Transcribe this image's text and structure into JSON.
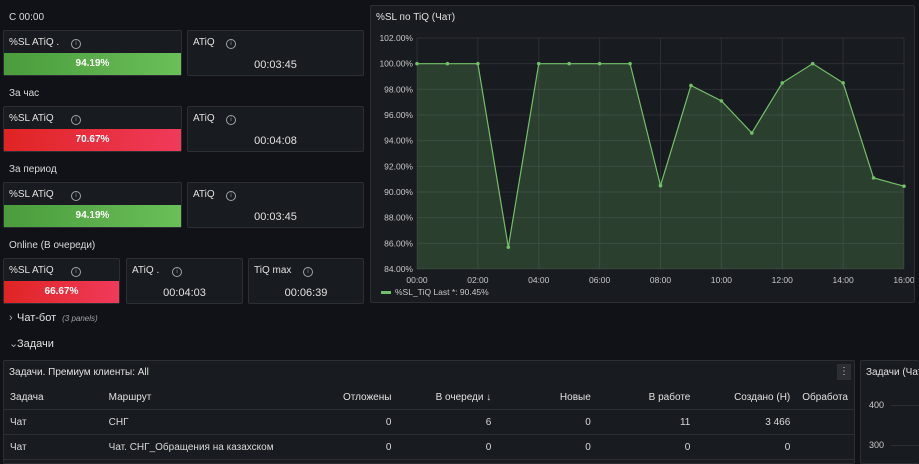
{
  "sections": {
    "s1": "С 00:00",
    "s2": "За час",
    "s3": "За период",
    "s4": "Online (В очереди)"
  },
  "stats": {
    "p1": {
      "title": "%SL ATiQ .",
      "value": "94.19%",
      "level": 0.9419,
      "color": "#6bbf59"
    },
    "p2": {
      "title": "ATiQ",
      "value": "00:03:45"
    },
    "p3": {
      "title": "%SL ATiQ",
      "value": "70.67%",
      "level": 0.7067,
      "color": "#f03a5a"
    },
    "p4": {
      "title": "ATiQ",
      "value": "00:04:08"
    },
    "p5": {
      "title": "%SL ATiQ",
      "value": "94.19%",
      "level": 0.9419,
      "color": "#6bbf59"
    },
    "p6": {
      "title": "ATiQ",
      "value": "00:03:45"
    },
    "p7": {
      "title": "%SL ATiQ",
      "value": "66.67%",
      "level": 0.6667,
      "color": "#f03a5a"
    },
    "p8": {
      "title": "ATiQ .",
      "value": "00:04:03"
    },
    "p9": {
      "title": "TiQ max",
      "value": "00:06:39"
    }
  },
  "info_glyph": "i",
  "chart_panel": {
    "title": "%SL по TiQ (Чат)"
  },
  "chart_data": {
    "type": "area",
    "x": [
      "00:00",
      "01:00",
      "02:00",
      "03:00",
      "04:00",
      "05:00",
      "06:00",
      "07:00",
      "08:00",
      "09:00",
      "10:00",
      "11:00",
      "12:00",
      "13:00",
      "14:00",
      "15:00",
      "16:00"
    ],
    "series": [
      {
        "name": "%SL_TiQ",
        "values": [
          100.0,
          100.0,
          100.0,
          85.7,
          100.0,
          100.0,
          100.0,
          100.0,
          90.5,
          98.3,
          97.1,
          94.6,
          98.5,
          100.0,
          98.5,
          91.1,
          90.45
        ],
        "color": "#73bf69"
      }
    ],
    "xticks": [
      "00:00",
      "02:00",
      "04:00",
      "06:00",
      "08:00",
      "10:00",
      "12:00",
      "14:00",
      "16:00"
    ],
    "yticks": [
      "84.00%",
      "86.00%",
      "88.00%",
      "90.00%",
      "92.00%",
      "94.00%",
      "96.00%",
      "98.00%",
      "100.00%",
      "102.00%"
    ],
    "ylim": [
      84,
      102
    ],
    "grid": true,
    "legend_placement": "bottom-left",
    "legend_text": "%SL_TiQ  Last *: 90.45%"
  },
  "rows": {
    "chatbot": {
      "chevron": "›",
      "label": "Чат-бот",
      "sub": "(3 panels)"
    },
    "tasks": {
      "chevron": "⌄",
      "label": "Задачи"
    }
  },
  "table_panel": {
    "title": "Задачи. Премиум клиенты: All",
    "menu_glyph": "⋮",
    "sort_glyph": "↓",
    "columns": [
      "Задача",
      "Маршрут",
      "Отложены",
      "В очереди",
      "Новые",
      "В работе",
      "Создано (Н)",
      "Обработа"
    ],
    "rows": [
      [
        "Чат",
        "СНГ",
        "0",
        "6",
        "0",
        "11",
        "3 466",
        ""
      ],
      [
        "Чат",
        "Чат. СНГ_Обращения на казахском",
        "0",
        "0",
        "0",
        "0",
        "0",
        ""
      ]
    ]
  },
  "right_panel": {
    "title": "Задачи (Чат",
    "yticks": [
      "400",
      "300"
    ]
  }
}
